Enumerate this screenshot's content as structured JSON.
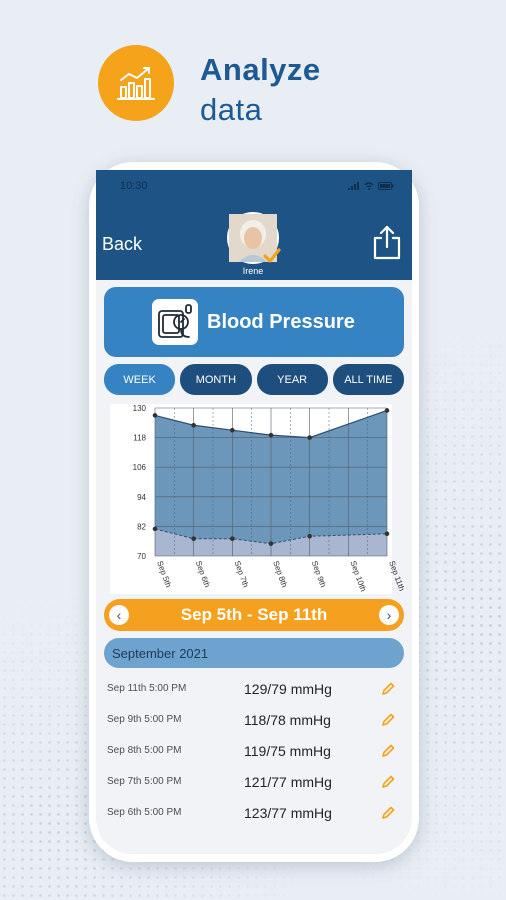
{
  "promo": {
    "title": "Analyze",
    "subtitle": "data",
    "icon": "bar-chart-trend-icon",
    "accent": "#f5a31a",
    "title_color": "#1d5a93"
  },
  "status_bar": {
    "time": "10:30",
    "icons": [
      "signal-icon",
      "wifi-icon",
      "battery-icon"
    ]
  },
  "header": {
    "back_label": "Back",
    "user_name": "Irene",
    "share_icon": "share-icon",
    "color": "#1e5485"
  },
  "metric": {
    "title": "Blood Pressure",
    "icon": "blood-pressure-monitor-icon",
    "color": "#3583c2"
  },
  "tabs": [
    {
      "label": "WEEK",
      "active": true
    },
    {
      "label": "MONTH",
      "active": false
    },
    {
      "label": "YEAR",
      "active": false
    },
    {
      "label": "ALL TIME",
      "active": false
    }
  ],
  "chart_data": {
    "type": "area",
    "categories": [
      "Sep 5th",
      "Sep 6th",
      "Sep 7th",
      "Sep 8th",
      "Sep 9th",
      "Sep 10th",
      "Sep 11th"
    ],
    "ylim": [
      70,
      130
    ],
    "yticks": [
      130,
      118,
      106,
      94,
      82,
      70
    ],
    "grid": true,
    "series": [
      {
        "values": [
          127,
          123,
          121,
          119,
          118,
          null,
          129
        ],
        "color": "#6d97ba"
      },
      {
        "values": [
          81,
          77,
          77,
          75,
          78,
          null,
          79
        ],
        "color": "#a8b7cf"
      }
    ]
  },
  "date_range": {
    "label": "Sep 5th - Sep 11th",
    "prev": "‹",
    "next": "›",
    "color": "#f6a01f"
  },
  "month_header": "September 2021",
  "readings": [
    {
      "date": "Sep 11th 5:00 PM",
      "value": "129/79 mmHg"
    },
    {
      "date": "Sep 9th 5:00 PM",
      "value": "118/78 mmHg"
    },
    {
      "date": "Sep 8th 5:00 PM",
      "value": "119/75 mmHg"
    },
    {
      "date": "Sep 7th 5:00 PM",
      "value": "121/77 mmHg"
    },
    {
      "date": "Sep 6th 5:00 PM",
      "value": "123/77 mmHg"
    }
  ]
}
